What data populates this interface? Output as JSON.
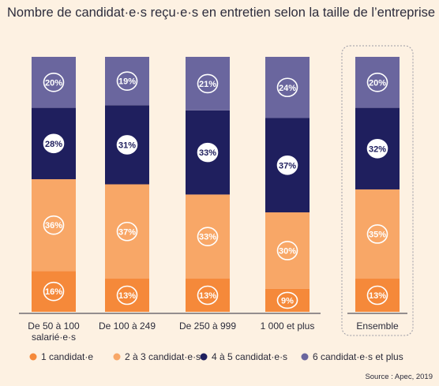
{
  "title": "Nombre de candidat·e·s reçu·e·s en entretien selon la taille de l’entreprise",
  "source": "Source : Apec, 2019",
  "chart_data": {
    "type": "bar",
    "stacked": true,
    "percent": true,
    "categories": [
      [
        "De 50 à 100",
        "salarié·e·s"
      ],
      [
        "De 100 à 249"
      ],
      [
        "De 250 à 999"
      ],
      [
        "1 000 et plus"
      ],
      [
        "Ensemble"
      ]
    ],
    "highlighted_category": "Ensemble",
    "series": [
      {
        "name": "1 candidat·e",
        "color": "#f5893a",
        "values": [
          16,
          13,
          13,
          9,
          13
        ]
      },
      {
        "name": "2 à 3 candidat·e·s",
        "color": "#f8a767",
        "values": [
          36,
          37,
          33,
          30,
          35
        ]
      },
      {
        "name": "4 à 5 candidat·e·s",
        "color": "#1f1f5e",
        "values": [
          28,
          31,
          33,
          37,
          32
        ]
      },
      {
        "name": "6 candidat·e·s et plus",
        "color": "#6a669e",
        "values": [
          20,
          19,
          21,
          24,
          20
        ]
      }
    ],
    "ylim": [
      0,
      100
    ],
    "grid": false,
    "legend": "bottom"
  }
}
